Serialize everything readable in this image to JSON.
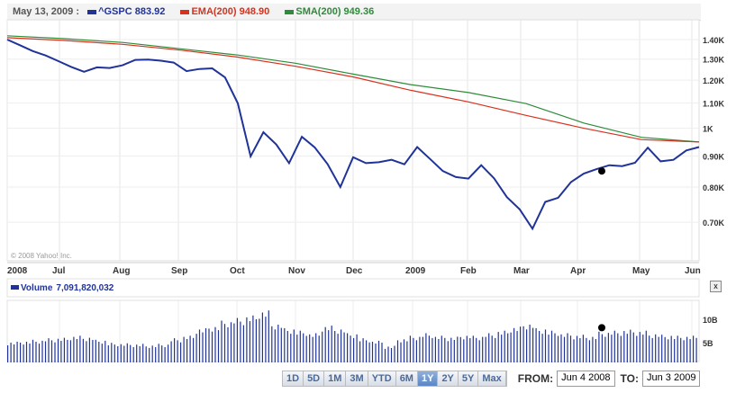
{
  "header": {
    "date": "May 13, 2009 :",
    "gspc_label": "^GSPC",
    "gspc_value": "883.92",
    "ema_label": "EMA(200)",
    "ema_value": "948.90",
    "sma_label": "SMA(200)",
    "sma_value": "949.36"
  },
  "colors": {
    "gspc": "#1f3399",
    "ema": "#d8321e",
    "sma": "#2e8b3a",
    "volume": "#1f3399"
  },
  "copyright": "© 2008 Yahoo! Inc.",
  "volume_legend": {
    "label": "Volume",
    "value": "7,091,820,032"
  },
  "close_label": "x",
  "ranges": [
    "1D",
    "5D",
    "1M",
    "3M",
    "YTD",
    "6M",
    "1Y",
    "2Y",
    "5Y",
    "Max"
  ],
  "active_range": "1Y",
  "from_label": "FROM:",
  "from_value": "Jun 4 2008",
  "to_label": "TO:",
  "to_value": "Jun 3 2009",
  "chart_data": [
    {
      "type": "line",
      "title": "^GSPC",
      "ylim": [
        650,
        1450
      ],
      "yscale": "log",
      "yticks": [
        {
          "v": 1400,
          "label": "1.40K"
        },
        {
          "v": 1300,
          "label": "1.30K"
        },
        {
          "v": 1200,
          "label": "1.20K"
        },
        {
          "v": 1100,
          "label": "1.10K"
        },
        {
          "v": 1000,
          "label": "1K"
        },
        {
          "v": 900,
          "label": "0.90K"
        },
        {
          "v": 800,
          "label": "0.80K"
        },
        {
          "v": 700,
          "label": "0.70K"
        }
      ],
      "xticks": [
        "2008",
        "Jul",
        "Aug",
        "Sep",
        "Oct",
        "Nov",
        "Dec",
        "2009",
        "Feb",
        "Mar",
        "Apr",
        "May",
        "Jun"
      ],
      "series": [
        {
          "name": "^GSPC",
          "values": [
            1400,
            1370,
            1340,
            1318,
            1290,
            1262,
            1239,
            1260,
            1257,
            1270,
            1296,
            1298,
            1292,
            1283,
            1242,
            1252,
            1255,
            1213,
            1099,
            899,
            985,
            940,
            876,
            968,
            930,
            873,
            800,
            896,
            876,
            879,
            887,
            872,
            931,
            890,
            850,
            831,
            826,
            869,
            827,
            770,
            735,
            683,
            756,
            768,
            815,
            842,
            856,
            869,
            866,
            877,
            929,
            882,
            887,
            919,
            931
          ]
        },
        {
          "name": "EMA(200)",
          "values": [
            1410,
            1395,
            1375,
            1345,
            1310,
            1265,
            1215,
            1155,
            1105,
            1050,
            1000,
            958,
            949
          ]
        },
        {
          "name": "SMA(200)",
          "values": [
            1420,
            1405,
            1385,
            1352,
            1320,
            1280,
            1228,
            1180,
            1145,
            1098,
            1020,
            966,
            949
          ]
        }
      ],
      "marker": {
        "value": 850
      }
    },
    {
      "type": "bar",
      "title": "Volume",
      "ylabel_ticks": [
        {
          "v": 10,
          "label": "10B"
        },
        {
          "v": 5,
          "label": "5B"
        }
      ],
      "ylim": [
        0,
        12
      ],
      "values": [
        4.8,
        5.0,
        5.2,
        5.5,
        5.6,
        6.0,
        5.8,
        5.2,
        4.6,
        4.5,
        4.4,
        4.2,
        4.4,
        5.5,
        6.0,
        7.5,
        8.0,
        9.0,
        9.5,
        10.0,
        11.0,
        8.5,
        7.5,
        7.0,
        6.5,
        8.0,
        7.5,
        6.5,
        5.5,
        5.0,
        4.0,
        5.5,
        6.0,
        6.5,
        6.0,
        5.8,
        6.2,
        6.0,
        6.5,
        7.0,
        7.8,
        8.5,
        7.5,
        7.0,
        6.5,
        6.2,
        6.0,
        6.8,
        7.0,
        7.2,
        7.0,
        6.5,
        6.2,
        6.0,
        6.0
      ],
      "marker": {
        "value": 8.2
      }
    }
  ]
}
